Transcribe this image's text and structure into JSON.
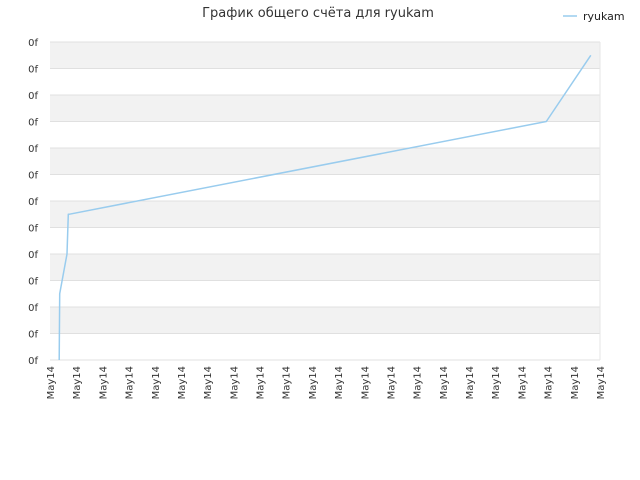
{
  "chart_data": {
    "type": "line",
    "title": "График общего счёта для ryukam",
    "xlabel": "",
    "ylabel": "",
    "x_tick_labels": [
      "May14",
      "May14",
      "May14",
      "May14",
      "May14",
      "May14",
      "May14",
      "May14",
      "May14",
      "May14",
      "May14",
      "May14",
      "May14",
      "May14",
      "May14",
      "May14",
      "May14",
      "May14",
      "May14",
      "May14",
      "May14",
      "May14"
    ],
    "y_tick_labels": [
      "0f",
      "0f",
      "0f",
      "0f",
      "0f",
      "0f",
      "0f",
      "0f",
      "0f",
      "0f",
      "0f",
      "0f",
      "0f"
    ],
    "xlim": [
      0,
      21
    ],
    "ylim": [
      0,
      12
    ],
    "grid": true,
    "legend": "top-right",
    "series": [
      {
        "name": "ryukam",
        "color": "#99ccee",
        "x": [
          0.35,
          0.37,
          0.65,
          0.7,
          0.72,
          18.95,
          20.65
        ],
        "y": [
          0,
          2.5,
          4.0,
          5.5,
          5.5,
          9.0,
          11.5
        ]
      }
    ]
  }
}
